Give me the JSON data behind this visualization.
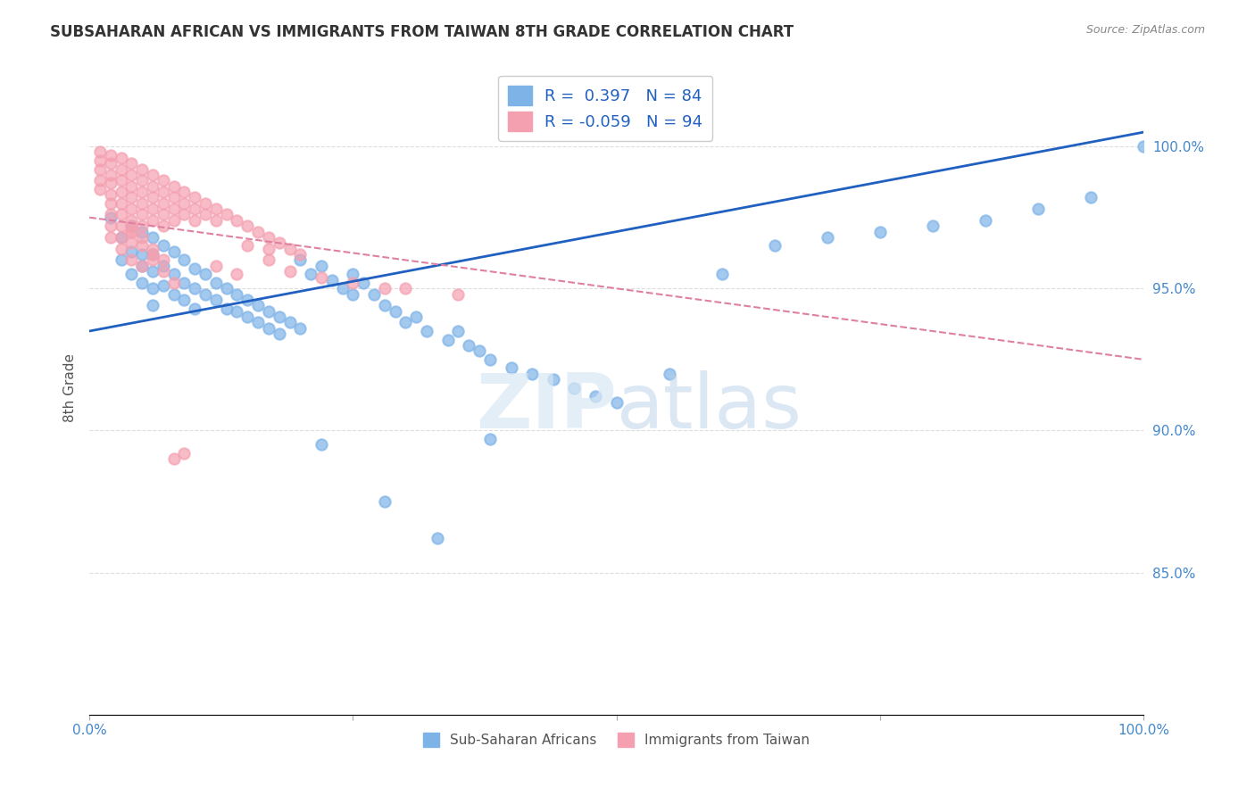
{
  "title": "SUBSAHARAN AFRICAN VS IMMIGRANTS FROM TAIWAN 8TH GRADE CORRELATION CHART",
  "source": "Source: ZipAtlas.com",
  "ylabel": "8th Grade",
  "r_blue": 0.397,
  "n_blue": 84,
  "r_pink": -0.059,
  "n_pink": 94,
  "legend_label_blue": "Sub-Saharan Africans",
  "legend_label_pink": "Immigrants from Taiwan",
  "blue_color": "#7EB3E8",
  "pink_color": "#F4A0B0",
  "blue_line_color": "#2060C0",
  "pink_line_color": "#E080A0",
  "axis_label_color": "#4488CC",
  "title_color": "#333333",
  "ytick_labels": [
    "85.0%",
    "90.0%",
    "95.0%",
    "100.0%"
  ],
  "ytick_positions": [
    0.85,
    0.9,
    0.95,
    1.0
  ],
  "xlim": [
    0.0,
    1.0
  ],
  "ylim": [
    0.8,
    1.03
  ],
  "blue_trend": [
    0.935,
    1.005
  ],
  "pink_trend": [
    0.975,
    0.925
  ],
  "blue_scatter_x": [
    0.02,
    0.03,
    0.03,
    0.04,
    0.04,
    0.04,
    0.05,
    0.05,
    0.05,
    0.05,
    0.06,
    0.06,
    0.06,
    0.06,
    0.06,
    0.07,
    0.07,
    0.07,
    0.08,
    0.08,
    0.08,
    0.09,
    0.09,
    0.09,
    0.1,
    0.1,
    0.1,
    0.11,
    0.11,
    0.12,
    0.12,
    0.13,
    0.13,
    0.14,
    0.14,
    0.15,
    0.15,
    0.16,
    0.16,
    0.17,
    0.17,
    0.18,
    0.18,
    0.19,
    0.2,
    0.2,
    0.21,
    0.22,
    0.23,
    0.24,
    0.25,
    0.25,
    0.26,
    0.27,
    0.28,
    0.29,
    0.3,
    0.31,
    0.32,
    0.34,
    0.35,
    0.36,
    0.37,
    0.38,
    0.4,
    0.42,
    0.44,
    0.46,
    0.48,
    0.5,
    0.55,
    0.6,
    0.65,
    0.7,
    0.75,
    0.8,
    0.85,
    0.9,
    0.95,
    1.0,
    0.22,
    0.28,
    0.33,
    0.38
  ],
  "blue_scatter_y": [
    0.975,
    0.968,
    0.96,
    0.972,
    0.963,
    0.955,
    0.97,
    0.962,
    0.958,
    0.952,
    0.968,
    0.962,
    0.956,
    0.95,
    0.944,
    0.965,
    0.958,
    0.951,
    0.963,
    0.955,
    0.948,
    0.96,
    0.952,
    0.946,
    0.957,
    0.95,
    0.943,
    0.955,
    0.948,
    0.952,
    0.946,
    0.95,
    0.943,
    0.948,
    0.942,
    0.946,
    0.94,
    0.944,
    0.938,
    0.942,
    0.936,
    0.94,
    0.934,
    0.938,
    0.96,
    0.936,
    0.955,
    0.958,
    0.953,
    0.95,
    0.955,
    0.948,
    0.952,
    0.948,
    0.944,
    0.942,
    0.938,
    0.94,
    0.935,
    0.932,
    0.935,
    0.93,
    0.928,
    0.925,
    0.922,
    0.92,
    0.918,
    0.915,
    0.912,
    0.91,
    0.92,
    0.955,
    0.965,
    0.968,
    0.97,
    0.972,
    0.974,
    0.978,
    0.982,
    1.0,
    0.895,
    0.875,
    0.862,
    0.897
  ],
  "pink_scatter_x": [
    0.01,
    0.01,
    0.01,
    0.01,
    0.01,
    0.02,
    0.02,
    0.02,
    0.02,
    0.02,
    0.02,
    0.02,
    0.02,
    0.02,
    0.03,
    0.03,
    0.03,
    0.03,
    0.03,
    0.03,
    0.03,
    0.03,
    0.03,
    0.04,
    0.04,
    0.04,
    0.04,
    0.04,
    0.04,
    0.04,
    0.04,
    0.05,
    0.05,
    0.05,
    0.05,
    0.05,
    0.05,
    0.06,
    0.06,
    0.06,
    0.06,
    0.06,
    0.07,
    0.07,
    0.07,
    0.07,
    0.07,
    0.08,
    0.08,
    0.08,
    0.08,
    0.09,
    0.09,
    0.09,
    0.1,
    0.1,
    0.1,
    0.11,
    0.11,
    0.12,
    0.12,
    0.13,
    0.14,
    0.15,
    0.16,
    0.17,
    0.17,
    0.18,
    0.19,
    0.2,
    0.12,
    0.14,
    0.15,
    0.17,
    0.19,
    0.22,
    0.25,
    0.28,
    0.3,
    0.35,
    0.04,
    0.05,
    0.06,
    0.07,
    0.08,
    0.04,
    0.05,
    0.06,
    0.04,
    0.05,
    0.06,
    0.07,
    0.08,
    0.09
  ],
  "pink_scatter_y": [
    0.998,
    0.995,
    0.992,
    0.988,
    0.985,
    0.997,
    0.994,
    0.99,
    0.987,
    0.983,
    0.98,
    0.976,
    0.972,
    0.968,
    0.996,
    0.992,
    0.988,
    0.984,
    0.98,
    0.976,
    0.972,
    0.968,
    0.964,
    0.994,
    0.99,
    0.986,
    0.982,
    0.978,
    0.974,
    0.97,
    0.966,
    0.992,
    0.988,
    0.984,
    0.98,
    0.976,
    0.972,
    0.99,
    0.986,
    0.982,
    0.978,
    0.974,
    0.988,
    0.984,
    0.98,
    0.976,
    0.972,
    0.986,
    0.982,
    0.978,
    0.974,
    0.984,
    0.98,
    0.976,
    0.982,
    0.978,
    0.974,
    0.98,
    0.976,
    0.978,
    0.974,
    0.976,
    0.974,
    0.972,
    0.97,
    0.968,
    0.964,
    0.966,
    0.964,
    0.962,
    0.958,
    0.955,
    0.965,
    0.96,
    0.956,
    0.954,
    0.952,
    0.95,
    0.95,
    0.948,
    0.96,
    0.958,
    0.962,
    0.956,
    0.952,
    0.97,
    0.965,
    0.96,
    0.972,
    0.968,
    0.964,
    0.96,
    0.89,
    0.892
  ]
}
